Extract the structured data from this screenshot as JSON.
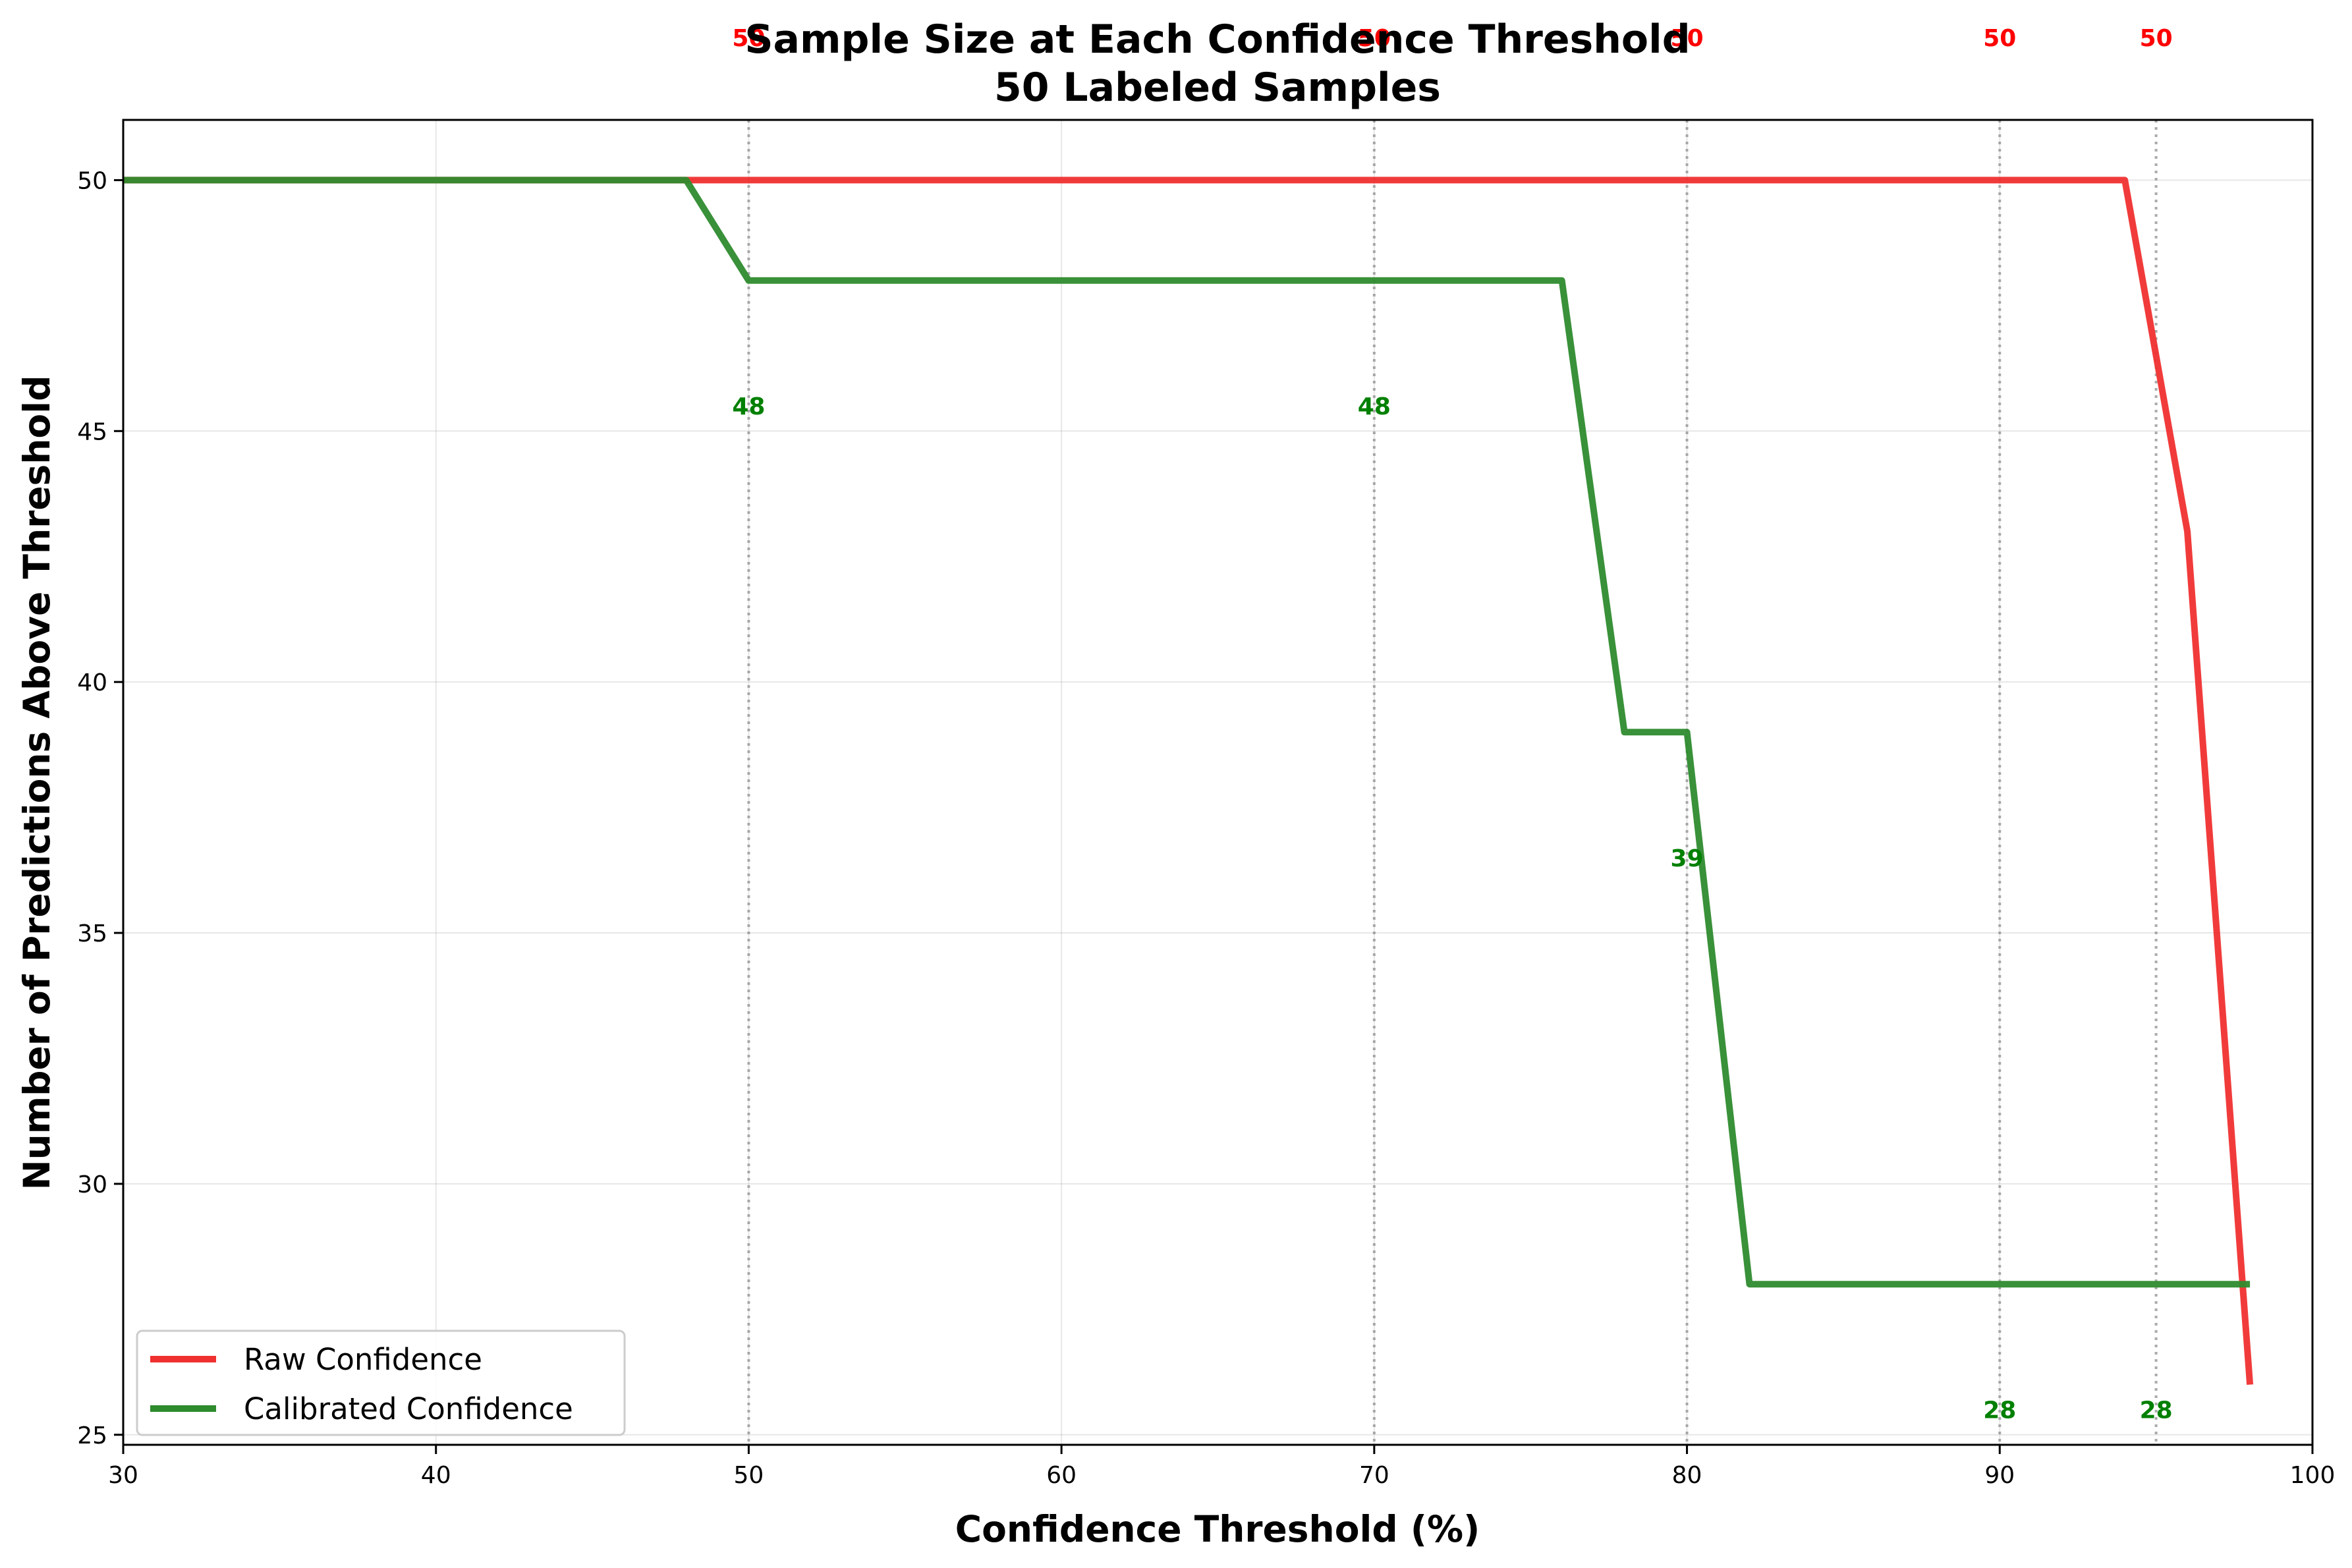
{
  "chart_data": {
    "type": "line",
    "title": "Sample Size at Each Confidence Threshold",
    "subtitle": "50 Labeled Samples",
    "xlabel": "Confidence Threshold (%)",
    "ylabel": "Number of Predictions Above Threshold",
    "xlim": [
      30,
      100
    ],
    "ylim": [
      24.8,
      51.2
    ],
    "xticks": [
      30,
      40,
      50,
      60,
      70,
      80,
      90,
      100
    ],
    "yticks": [
      25,
      30,
      35,
      40,
      45,
      50
    ],
    "grid": true,
    "legend_position": "bottom-left",
    "series": [
      {
        "name": "Raw Confidence",
        "color": "#f03030",
        "x": [
          30,
          32,
          34,
          36,
          38,
          40,
          42,
          44,
          46,
          48,
          50,
          52,
          54,
          56,
          58,
          60,
          62,
          64,
          66,
          68,
          70,
          72,
          74,
          76,
          78,
          80,
          82,
          84,
          86,
          88,
          90,
          92,
          94,
          96,
          98
        ],
        "y": [
          50,
          50,
          50,
          50,
          50,
          50,
          50,
          50,
          50,
          50,
          50,
          50,
          50,
          50,
          50,
          50,
          50,
          50,
          50,
          50,
          50,
          50,
          50,
          50,
          50,
          50,
          50,
          50,
          50,
          50,
          50,
          50,
          50,
          43,
          26
        ]
      },
      {
        "name": "Calibrated Confidence",
        "color": "#2e8b2e",
        "x": [
          30,
          32,
          34,
          36,
          38,
          40,
          42,
          44,
          46,
          48,
          50,
          52,
          54,
          56,
          58,
          60,
          62,
          64,
          66,
          68,
          70,
          72,
          74,
          76,
          78,
          80,
          82,
          84,
          86,
          88,
          90,
          92,
          94,
          96,
          98
        ],
        "y": [
          50,
          50,
          50,
          50,
          50,
          50,
          50,
          50,
          50,
          50,
          48,
          48,
          48,
          48,
          48,
          48,
          48,
          48,
          48,
          48,
          48,
          48,
          48,
          48,
          39,
          39,
          28,
          28,
          28,
          28,
          28,
          28,
          28,
          28,
          28
        ]
      }
    ],
    "reference_lines_x": [
      50,
      70,
      80,
      90,
      95
    ],
    "annotations": {
      "raw": [
        {
          "x": 50,
          "label": "50"
        },
        {
          "x": 70,
          "label": "50"
        },
        {
          "x": 80,
          "label": "50"
        },
        {
          "x": 90,
          "label": "50"
        },
        {
          "x": 95,
          "label": "50"
        }
      ],
      "calibrated": [
        {
          "x": 50,
          "label": "48"
        },
        {
          "x": 70,
          "label": "48"
        },
        {
          "x": 80,
          "label": "39"
        },
        {
          "x": 90,
          "label": "28"
        },
        {
          "x": 95,
          "label": "28"
        }
      ]
    }
  }
}
